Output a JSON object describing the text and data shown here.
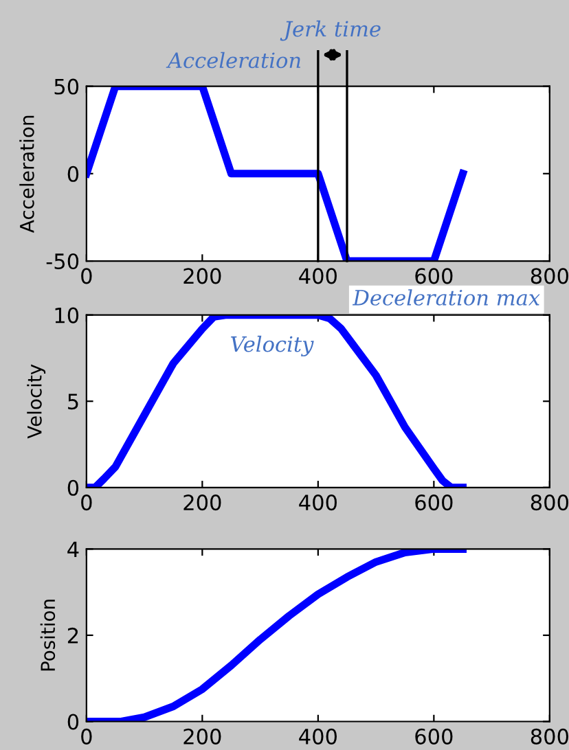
{
  "chart_data": [
    {
      "type": "line",
      "x": [
        0,
        50,
        200,
        250,
        400,
        450,
        600,
        650
      ],
      "values": [
        0,
        50,
        50,
        0,
        0,
        -50,
        -50,
        0
      ],
      "color": "#0000ff",
      "ylabel": "Acceleration",
      "xlim": [
        0,
        800
      ],
      "ylim": [
        -50,
        50
      ],
      "xticks": [
        0,
        200,
        400,
        600,
        800
      ],
      "yticks": [
        -50,
        0,
        50
      ],
      "grid": false,
      "annotations": [
        "Acceleration",
        "Jerk time",
        {
          "text": "Deceleration max",
          "x": 450,
          "y": -50
        }
      ],
      "ref_lines": [
        {
          "axis": "x",
          "value": 400,
          "color": "#000000"
        },
        {
          "axis": "x",
          "value": 450,
          "color": "#000000"
        }
      ]
    },
    {
      "type": "line",
      "x": [
        0,
        15,
        30,
        50,
        100,
        150,
        200,
        220,
        240,
        400,
        420,
        440,
        500,
        550,
        600,
        615,
        630,
        650
      ],
      "values": [
        0,
        0,
        0.5,
        1.2,
        4.2,
        7.2,
        9.2,
        9.9,
        10,
        10,
        9.8,
        9.2,
        6.5,
        3.5,
        1.1,
        0.4,
        0,
        0
      ],
      "color": "#0000ff",
      "ylabel": "Velocity",
      "xlim": [
        0,
        800
      ],
      "ylim": [
        0,
        10
      ],
      "xticks": [
        0,
        200,
        400,
        600,
        800
      ],
      "yticks": [
        0,
        5,
        10
      ],
      "grid": false,
      "annotations": [
        "Velocity"
      ]
    },
    {
      "type": "line",
      "x": [
        0,
        60,
        100,
        150,
        200,
        250,
        300,
        350,
        400,
        450,
        500,
        550,
        600,
        650
      ],
      "values": [
        0,
        0,
        0.1,
        0.35,
        0.75,
        1.3,
        1.9,
        2.45,
        2.95,
        3.35,
        3.7,
        3.92,
        4,
        4
      ],
      "color": "#0000ff",
      "ylabel": "Position",
      "xlim": [
        0,
        800
      ],
      "ylim": [
        0,
        4
      ],
      "xticks": [
        0,
        200,
        400,
        600,
        800
      ],
      "yticks": [
        0,
        2,
        4
      ],
      "grid": false
    }
  ]
}
